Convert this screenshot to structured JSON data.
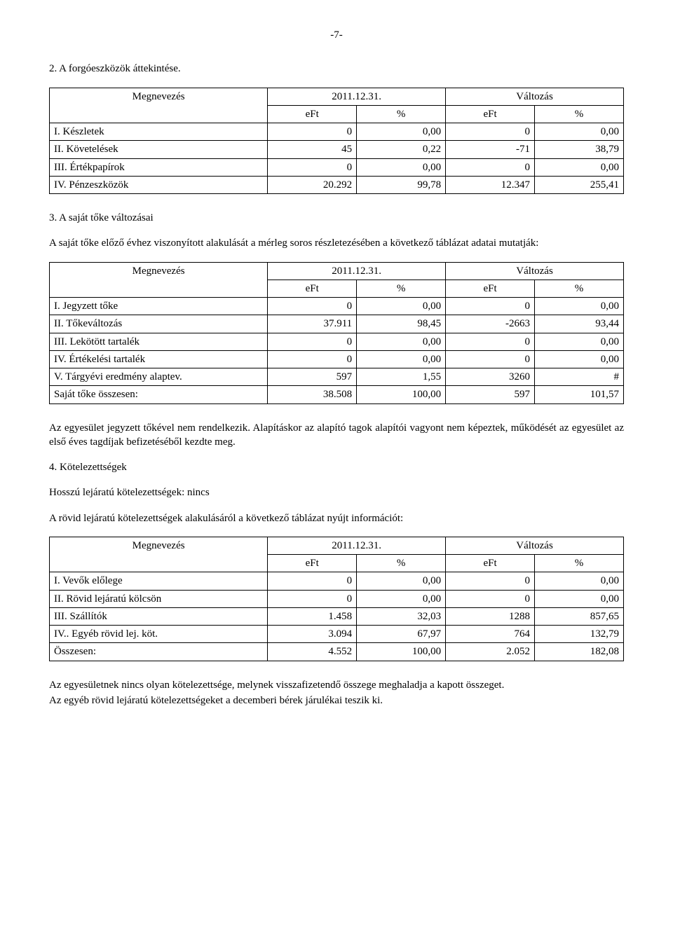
{
  "pageNumber": "-7-",
  "section2": {
    "title": "2. A forgóeszközök áttekintése.",
    "table": {
      "header": {
        "c1": "Megnevezés",
        "c2": "2011.12.31.",
        "c3": "Változás",
        "sub_eft": "eFt",
        "sub_pct": "%"
      },
      "rows": [
        {
          "name": "I. Készletek",
          "eft": "0",
          "pct": "0,00",
          "d_eft": "0",
          "d_pct": "0,00"
        },
        {
          "name": "II. Követelések",
          "eft": "45",
          "pct": "0,22",
          "d_eft": "-71",
          "d_pct": "38,79"
        },
        {
          "name": "III. Értékpapírok",
          "eft": "0",
          "pct": "0,00",
          "d_eft": "0",
          "d_pct": "0,00"
        },
        {
          "name": "IV. Pénzeszközök",
          "eft": "20.292",
          "pct": "99,78",
          "d_eft": "12.347",
          "d_pct": "255,41"
        }
      ]
    }
  },
  "section3": {
    "title": "3. A saját tőke változásai",
    "intro": "A saját tőke előző évhez viszonyított alakulását a mérleg soros részletezésében a következő táblázat adatai mutatják:",
    "table": {
      "header": {
        "c1": "Megnevezés",
        "c2": "2011.12.31.",
        "c3": "Változás",
        "sub_eft": "eFt",
        "sub_pct": "%"
      },
      "rows": [
        {
          "name": "I. Jegyzett tőke",
          "eft": "0",
          "pct": "0,00",
          "d_eft": "0",
          "d_pct": "0,00"
        },
        {
          "name": "II. Tőkeváltozás",
          "eft": "37.911",
          "pct": "98,45",
          "d_eft": "-2663",
          "d_pct": "93,44"
        },
        {
          "name": "III. Lekötött tartalék",
          "eft": "0",
          "pct": "0,00",
          "d_eft": "0",
          "d_pct": "0,00"
        },
        {
          "name": "IV. Értékelési tartalék",
          "eft": "0",
          "pct": "0,00",
          "d_eft": "0",
          "d_pct": "0,00"
        },
        {
          "name": "V. Tárgyévi eredmény alaptev.",
          "eft": "597",
          "pct": "1,55",
          "d_eft": "3260",
          "d_pct": "#"
        },
        {
          "name": "Saját tőke összesen:",
          "eft": "38.508",
          "pct": "100,00",
          "d_eft": "597",
          "d_pct": "101,57"
        }
      ]
    },
    "after": "Az egyesület jegyzett tőkével nem rendelkezik. Alapításkor az alapító tagok alapítói vagyont nem képeztek, működését az egyesület az első éves tagdíjak befizetéséből kezdte meg."
  },
  "section4": {
    "title": "4. Kötelezettségek",
    "p1": "Hosszú lejáratú kötelezettségek: nincs",
    "p2": "A rövid lejáratú kötelezettségek alakulásáról a következő táblázat nyújt információt:",
    "table": {
      "header": {
        "c1": "Megnevezés",
        "c2": "2011.12.31.",
        "c3": "Változás",
        "sub_eft": "eFt",
        "sub_pct": "%"
      },
      "rows": [
        {
          "name": "I. Vevők előlege",
          "eft": "0",
          "pct": "0,00",
          "d_eft": "0",
          "d_pct": "0,00"
        },
        {
          "name": "II. Rövid lejáratú kölcsön",
          "eft": "0",
          "pct": "0,00",
          "d_eft": "0",
          "d_pct": "0,00"
        },
        {
          "name": "III. Szállítók",
          "eft": "1.458",
          "pct": "32,03",
          "d_eft": "1288",
          "d_pct": "857,65"
        },
        {
          "name": "IV.. Egyéb rövid lej. köt.",
          "eft": "3.094",
          "pct": "67,97",
          "d_eft": "764",
          "d_pct": "132,79"
        },
        {
          "name": "Összesen:",
          "eft": "4.552",
          "pct": "100,00",
          "d_eft": "2.052",
          "d_pct": "182,08"
        }
      ]
    },
    "after1": "Az egyesületnek nincs olyan kötelezettsége, melynek visszafizetendő összege meghaladja a kapott összeget.",
    "after2": "Az egyéb rövid lejáratú kötelezettségeket a decemberi bérek járulékai teszik ki."
  }
}
